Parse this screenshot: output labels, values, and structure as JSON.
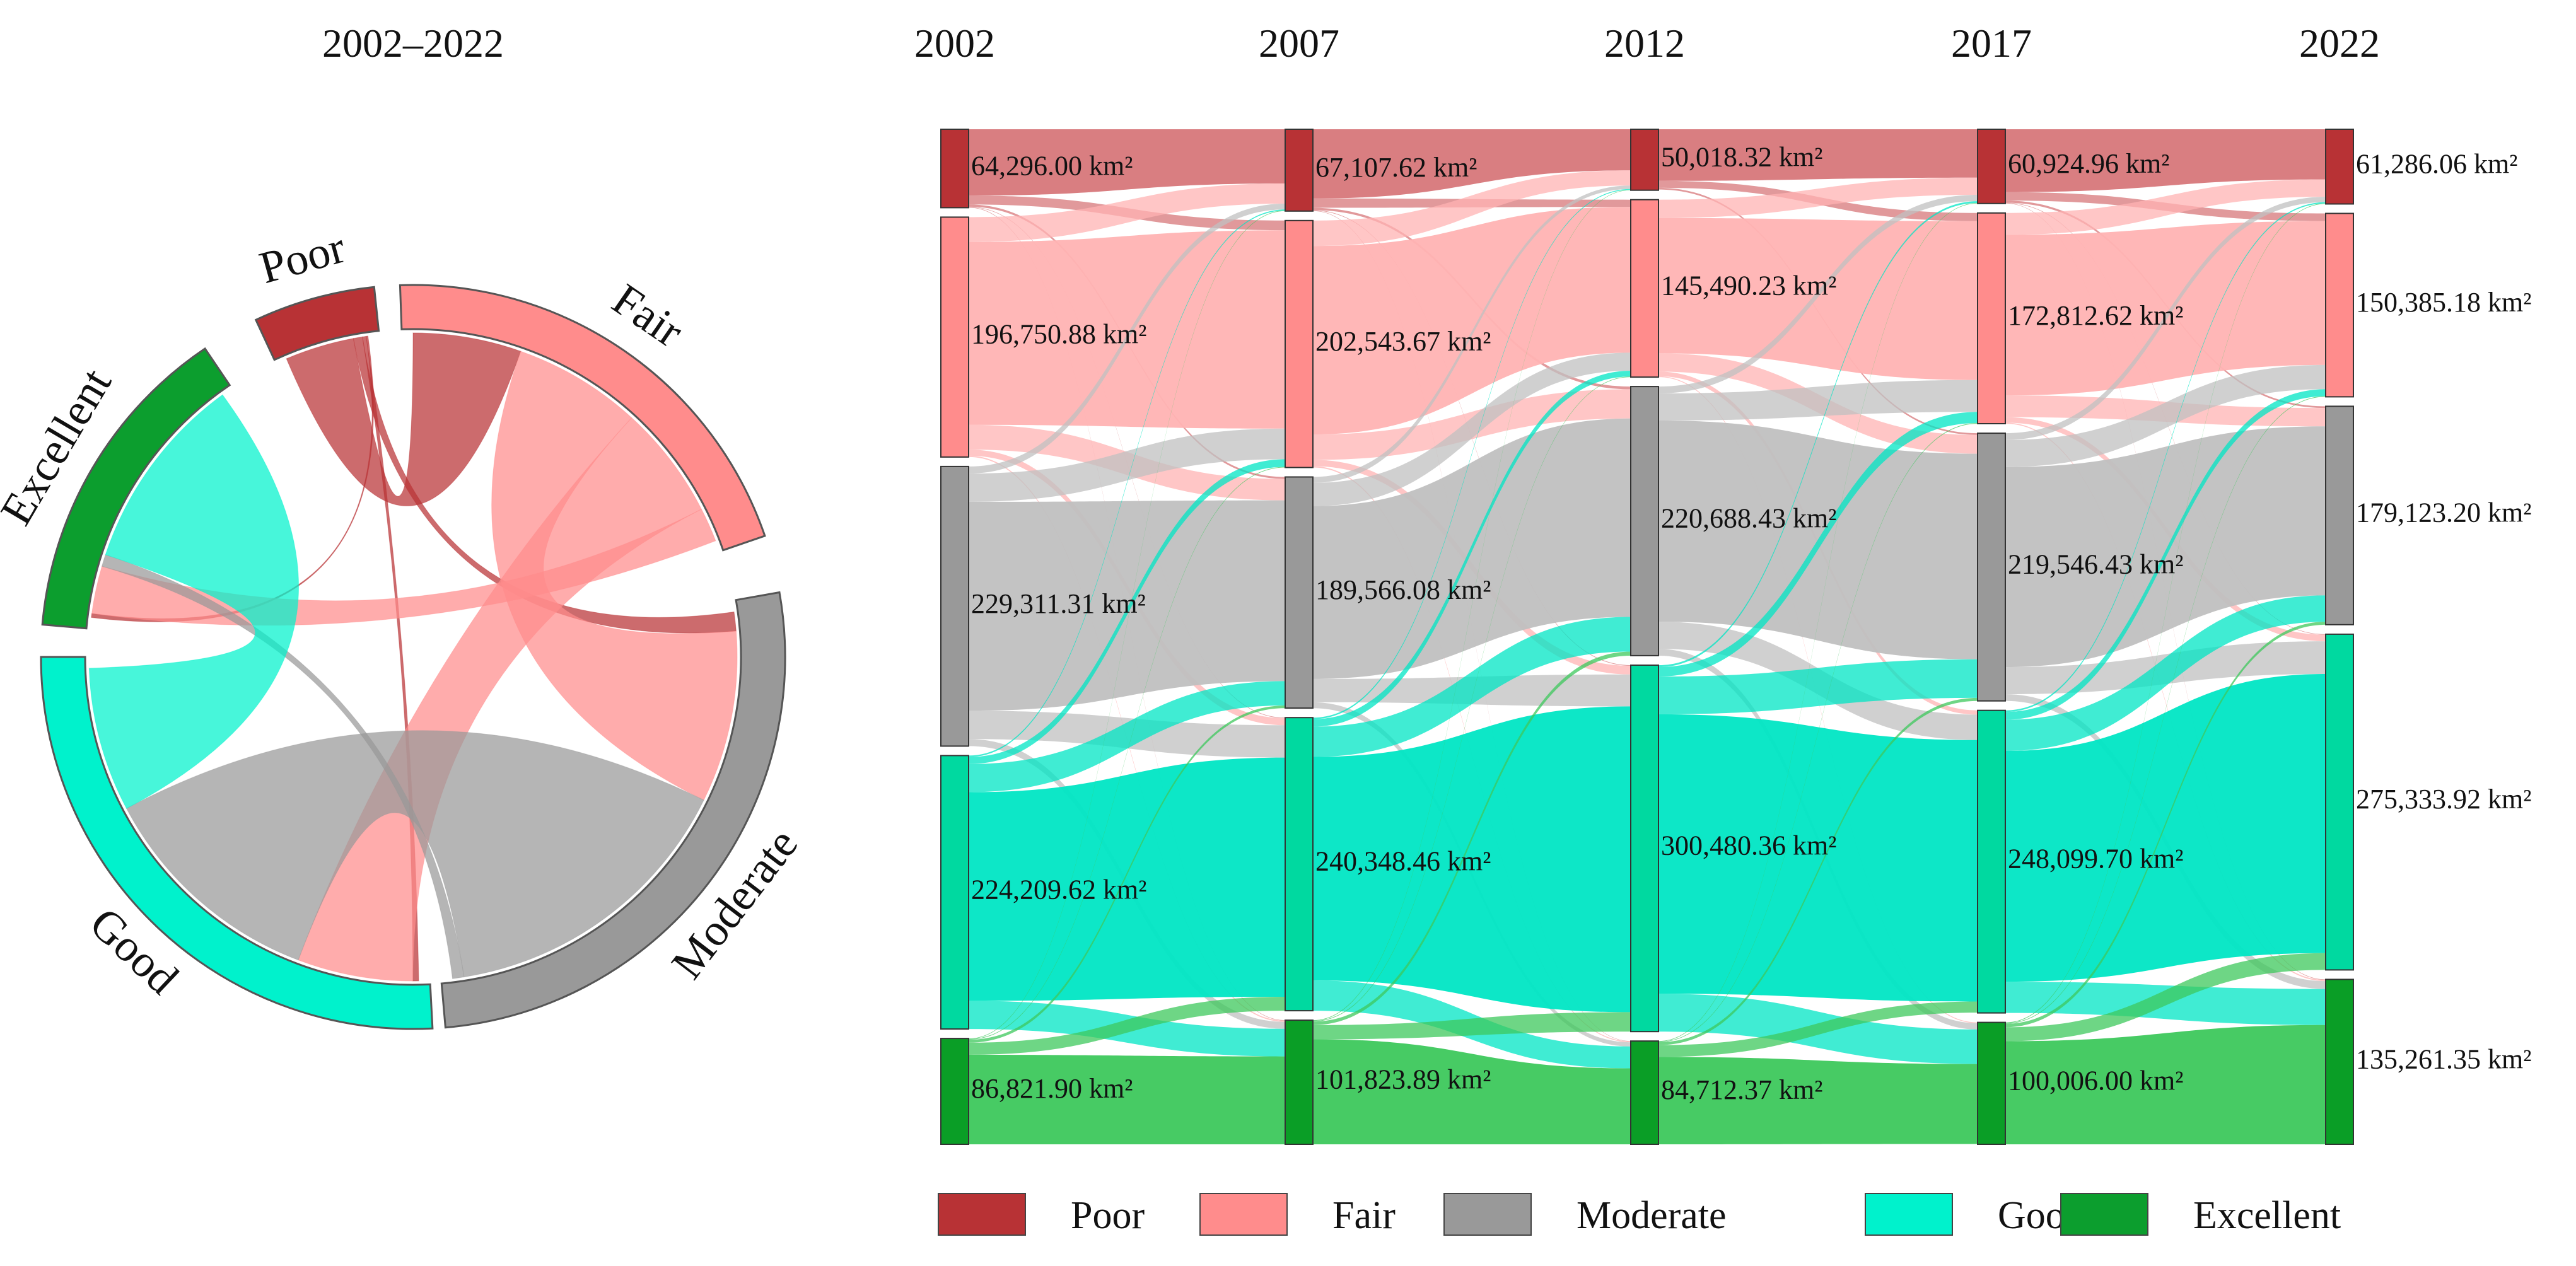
{
  "chart_data": [
    {
      "type": "chord",
      "title": "2002–2022",
      "categories": [
        "Poor",
        "Fair",
        "Moderate",
        "Good",
        "Excellent"
      ],
      "colors": [
        "#B83235",
        "#FF8C8C",
        "#999999",
        "#00F2CC",
        "#0C9E2E"
      ],
      "arc_sizes": [
        64,
        196,
        229,
        224,
        87
      ],
      "flows": [
        {
          "from": "Poor",
          "to": "Fair",
          "value": 38
        },
        {
          "from": "Poor",
          "to": "Moderate",
          "value": 5
        },
        {
          "from": "Poor",
          "to": "Good",
          "value": 2
        },
        {
          "from": "Poor",
          "to": "Excellent",
          "value": 1
        },
        {
          "from": "Fair",
          "to": "Moderate",
          "value": 45
        },
        {
          "from": "Fair",
          "to": "Good",
          "value": 40
        },
        {
          "from": "Fair",
          "to": "Excellent",
          "value": 12
        },
        {
          "from": "Moderate",
          "to": "Good",
          "value": 80
        },
        {
          "from": "Moderate",
          "to": "Excellent",
          "value": 3
        },
        {
          "from": "Good",
          "to": "Excellent",
          "value": 50
        }
      ]
    },
    {
      "type": "sankey",
      "years": [
        "2002",
        "2007",
        "2012",
        "2017",
        "2022"
      ],
      "unit": "km²",
      "categories": [
        "Poor",
        "Fair",
        "Moderate",
        "Good",
        "Excellent"
      ],
      "colors": [
        "#B83235",
        "#FF8C8C",
        "#999999",
        "#00D9A0",
        "#0A9E26"
      ],
      "link_colors": [
        "#D7777A",
        "#FFB3B3",
        "#C0C0C0",
        "#00E6C4",
        "#3DC85C"
      ],
      "values": [
        [
          64296.0,
          196750.88,
          229311.31,
          224209.62,
          86821.9
        ],
        [
          67107.62,
          202543.67,
          189566.08,
          240348.46,
          101823.89
        ],
        [
          50018.32,
          145490.23,
          220688.43,
          300480.36,
          84712.37
        ],
        [
          60924.96,
          172812.62,
          219546.43,
          248099.7,
          100006.0
        ],
        [
          61286.06,
          150385.18,
          179123.2,
          275333.92,
          135261.35
        ]
      ],
      "labels": [
        [
          "64,296.00",
          "196,750.88",
          "229,311.31",
          "224,209.62",
          "86,821.90"
        ],
        [
          "67,107.62",
          "202,543.67",
          "189,566.08",
          "240,348.46",
          "101,823.89"
        ],
        [
          "50,018.32",
          "145,490.23",
          "220,688.43",
          "300,480.36",
          "84,712.37"
        ],
        [
          "60,924.96",
          "172,812.62",
          "219,546.43",
          "248,099.70",
          "100,006.00"
        ],
        [
          "61,286.06",
          "150,385.18",
          "179,123.20",
          "275,333.92",
          "135,261.35"
        ]
      ]
    }
  ],
  "legend": {
    "items": [
      {
        "label": "Poor",
        "color": "#B83235"
      },
      {
        "label": "Fair",
        "color": "#FF8C8C"
      },
      {
        "label": "Moderate",
        "color": "#999999"
      },
      {
        "label": "Good",
        "color": "#00F2CC"
      },
      {
        "label": "Excellent",
        "color": "#0C9E2E"
      }
    ]
  }
}
